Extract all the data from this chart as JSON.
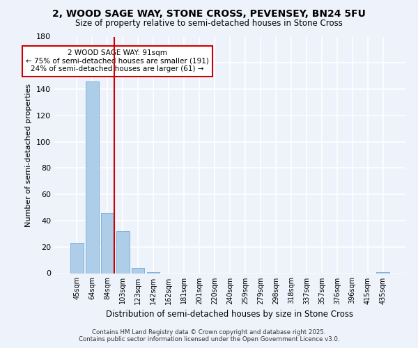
{
  "title": "2, WOOD SAGE WAY, STONE CROSS, PEVENSEY, BN24 5FU",
  "subtitle": "Size of property relative to semi-detached houses in Stone Cross",
  "xlabel": "Distribution of semi-detached houses by size in Stone Cross",
  "ylabel": "Number of semi-detached properties",
  "categories": [
    "45sqm",
    "64sqm",
    "84sqm",
    "103sqm",
    "123sqm",
    "142sqm",
    "162sqm",
    "181sqm",
    "201sqm",
    "220sqm",
    "240sqm",
    "259sqm",
    "279sqm",
    "298sqm",
    "318sqm",
    "337sqm",
    "357sqm",
    "376sqm",
    "396sqm",
    "415sqm",
    "435sqm"
  ],
  "values": [
    23,
    146,
    46,
    32,
    4,
    1,
    0,
    0,
    0,
    0,
    0,
    0,
    0,
    0,
    0,
    0,
    0,
    0,
    0,
    0,
    1
  ],
  "bar_color": "#aecde8",
  "bar_edge_color": "#7fb3d9",
  "ylim": [
    0,
    180
  ],
  "yticks": [
    0,
    20,
    40,
    60,
    80,
    100,
    120,
    140,
    160,
    180
  ],
  "property_line_color": "#cc0000",
  "annotation_title": "2 WOOD SAGE WAY: 91sqm",
  "annotation_line1": "← 75% of semi-detached houses are smaller (191)",
  "annotation_line2": "24% of semi-detached houses are larger (61) →",
  "annotation_box_color": "#cc0000",
  "background_color": "#eef2fb",
  "grid_color": "#ffffff",
  "footer1": "Contains HM Land Registry data © Crown copyright and database right 2025.",
  "footer2": "Contains public sector information licensed under the Open Government Licence v3.0."
}
